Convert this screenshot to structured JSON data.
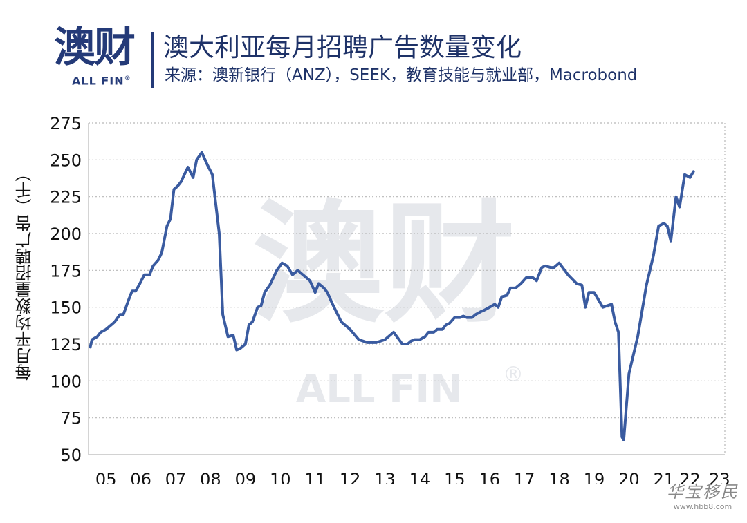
{
  "brand": {
    "logo_text": "澳财",
    "logo_sub": "ALL FIN",
    "logo_reg": "®",
    "color": "#243a78"
  },
  "header": {
    "title": "澳大利亚每月招聘广告数量变化",
    "subtitle": "来源：澳新银行（ANZ），SEEK，教育技能与就业部，Macrobond"
  },
  "watermark": {
    "main": "澳财",
    "sub": "ALL FIN",
    "reg": "®"
  },
  "corner_watermark": {
    "main": "华宝移民",
    "url": "www.hbb8.com"
  },
  "chart_data": {
    "type": "line",
    "ylabel": "每月平均数量招聘广告（千）",
    "xlabel": "",
    "ylim": [
      50,
      275
    ],
    "yticks": [
      275,
      250,
      225,
      200,
      175,
      150,
      125,
      100,
      75,
      50
    ],
    "xlim": [
      2004.75,
      2023.0
    ],
    "xticks": [
      {
        "label": "05",
        "value": 2005.25
      },
      {
        "label": "06",
        "value": 2006.25
      },
      {
        "label": "07",
        "value": 2007.25
      },
      {
        "label": "08",
        "value": 2008.25
      },
      {
        "label": "09",
        "value": 2009.25
      },
      {
        "label": "10",
        "value": 2010.25
      },
      {
        "label": "11",
        "value": 2011.25
      },
      {
        "label": "12",
        "value": 2012.25
      },
      {
        "label": "13",
        "value": 2013.25
      },
      {
        "label": "14",
        "value": 2014.25
      },
      {
        "label": "15",
        "value": 2015.25
      },
      {
        "label": "16",
        "value": 2016.25
      },
      {
        "label": "17",
        "value": 2017.25
      },
      {
        "label": "18",
        "value": 2018.25
      },
      {
        "label": "19",
        "value": 2019.25
      },
      {
        "label": "20",
        "value": 2020.25
      },
      {
        "label": "21",
        "value": 2021.25
      },
      {
        "label": "22",
        "value": 2022.0
      },
      {
        "label": "23",
        "value": 2022.85
      }
    ],
    "grid": true,
    "series": [
      {
        "color": "#3a5ba0",
        "x": [
          2004.8,
          2004.85,
          2005.0,
          2005.1,
          2005.25,
          2005.4,
          2005.5,
          2005.65,
          2005.75,
          2005.9,
          2006.0,
          2006.1,
          2006.2,
          2006.35,
          2006.5,
          2006.6,
          2006.75,
          2006.85,
          2007.0,
          2007.1,
          2007.2,
          2007.3,
          2007.4,
          2007.6,
          2007.75,
          2007.85,
          2008.0,
          2008.15,
          2008.3,
          2008.5,
          2008.6,
          2008.75,
          2008.9,
          2009.0,
          2009.1,
          2009.2,
          2009.25,
          2009.35,
          2009.45,
          2009.6,
          2009.7,
          2009.8,
          2009.95,
          2010.05,
          2010.15,
          2010.3,
          2010.45,
          2010.6,
          2010.75,
          2010.85,
          2011.0,
          2011.1,
          2011.25,
          2011.35,
          2011.5,
          2011.6,
          2011.75,
          2012.0,
          2012.25,
          2012.5,
          2012.75,
          2013.0,
          2013.25,
          2013.5,
          2013.75,
          2013.9,
          2014.0,
          2014.1,
          2014.25,
          2014.4,
          2014.5,
          2014.65,
          2014.75,
          2014.9,
          2015.0,
          2015.1,
          2015.25,
          2015.4,
          2015.5,
          2015.6,
          2015.75,
          2015.85,
          2016.0,
          2016.1,
          2016.25,
          2016.4,
          2016.5,
          2016.6,
          2016.75,
          2016.85,
          2017.0,
          2017.15,
          2017.3,
          2017.4,
          2017.5,
          2017.6,
          2017.75,
          2017.85,
          2018.0,
          2018.1,
          2018.25,
          2018.5,
          2018.75,
          2018.9,
          2019.0,
          2019.1,
          2019.25,
          2019.5,
          2019.75,
          2019.85,
          2019.95,
          2020.05,
          2020.1,
          2020.25,
          2020.5,
          2020.75,
          2020.95,
          2021.1,
          2021.25,
          2021.35,
          2021.45,
          2021.6,
          2021.7,
          2021.85,
          2022.0,
          2022.1
        ],
        "values": [
          123,
          128,
          130,
          133,
          135,
          138,
          140,
          145,
          145,
          155,
          161,
          161,
          165,
          172,
          172,
          178,
          182,
          187,
          205,
          210,
          230,
          232,
          235,
          245,
          238,
          250,
          255,
          247,
          240,
          200,
          145,
          130,
          131,
          121,
          122,
          124,
          125,
          138,
          140,
          150,
          151,
          160,
          165,
          170,
          175,
          180,
          178,
          172,
          175,
          173,
          170,
          168,
          160,
          166,
          163,
          160,
          152,
          140,
          135,
          128,
          126,
          126,
          128,
          133,
          125,
          125,
          127,
          128,
          128,
          130,
          133,
          133,
          135,
          135,
          138,
          139,
          143,
          143,
          144,
          143,
          143,
          145,
          147,
          148,
          150,
          152,
          150,
          157,
          158,
          163,
          163,
          166,
          170,
          170,
          170,
          168,
          177,
          178,
          177,
          177,
          180,
          172,
          166,
          165,
          150,
          160,
          160,
          150,
          152,
          140,
          133,
          62,
          60,
          105,
          130,
          165,
          185,
          205,
          207,
          205,
          195,
          225,
          218,
          240,
          238,
          242
        ]
      }
    ]
  }
}
